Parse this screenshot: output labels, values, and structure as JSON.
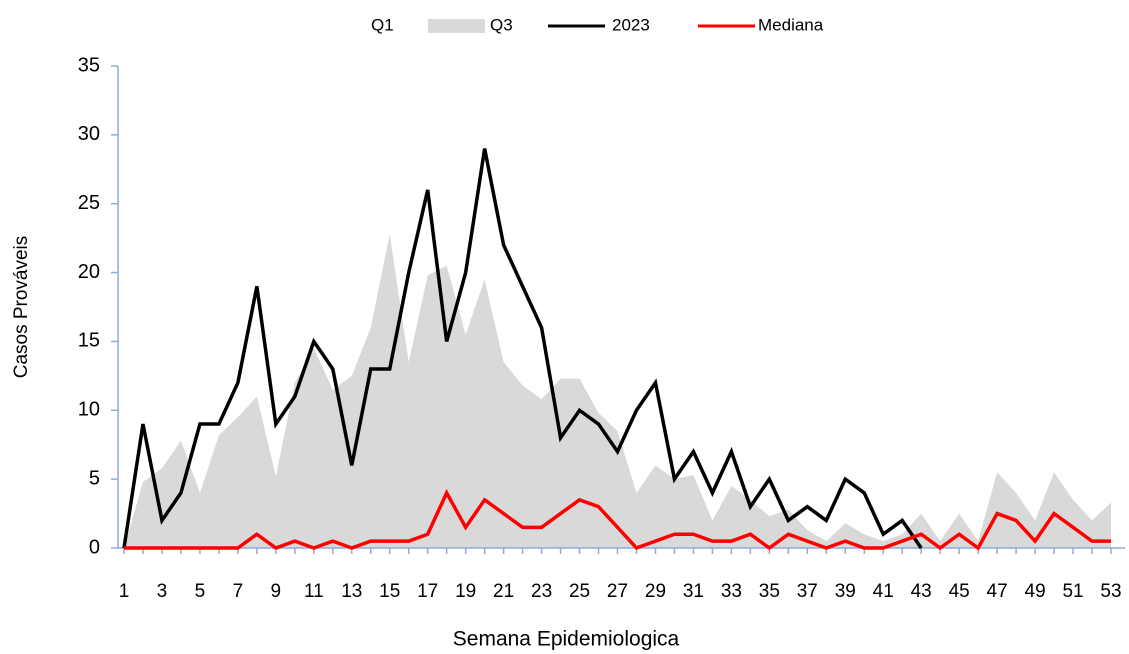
{
  "chart_data": {
    "type": "line",
    "xlabel": "Semana Epidemiologica",
    "ylabel": "Casos Prováveis",
    "categories": [
      1,
      null,
      3,
      null,
      5,
      null,
      7,
      null,
      9,
      null,
      11,
      null,
      13,
      null,
      15,
      null,
      17,
      null,
      19,
      null,
      21,
      null,
      23,
      null,
      25,
      null,
      27,
      null,
      29,
      null,
      31,
      null,
      33,
      null,
      35,
      null,
      37,
      null,
      39,
      null,
      41,
      null,
      43,
      null,
      45,
      null,
      47,
      null,
      49,
      null,
      51,
      null,
      53
    ],
    "ylim": [
      0,
      35
    ],
    "yticks": [
      0,
      5,
      10,
      15,
      20,
      25,
      30,
      35
    ],
    "legend": "top",
    "series": [
      {
        "name": "Q1",
        "color": "#ffffff",
        "kind": "area",
        "values": [
          0,
          0,
          0,
          0,
          0,
          0,
          0,
          0,
          0,
          0,
          0,
          0,
          0,
          0,
          0,
          0,
          0,
          0,
          0,
          0,
          0,
          0,
          0,
          0,
          0.2,
          0.8,
          0.3,
          0,
          0,
          0,
          0,
          0,
          0,
          0,
          0,
          0,
          0,
          0,
          0,
          0,
          0,
          0,
          0,
          0,
          0,
          0,
          0,
          0,
          0,
          0,
          0,
          0,
          0
        ]
      },
      {
        "name": "Q3",
        "color": "#d9d9d9",
        "kind": "area",
        "values": [
          0,
          4.8,
          5.8,
          7.8,
          4,
          8.2,
          9.5,
          11,
          5.2,
          12,
          14.5,
          11.5,
          12.5,
          16,
          22.8,
          13.5,
          19.8,
          20.5,
          15.5,
          19.5,
          13.5,
          11.8,
          10.8,
          12.3,
          12.3,
          9.8,
          8.5,
          4,
          6,
          5,
          5.3,
          2,
          4.5,
          3.5,
          2.3,
          2.8,
          1.3,
          0.5,
          1.8,
          1,
          0.5,
          1,
          2.5,
          0.5,
          2.5,
          0.5,
          5.5,
          4,
          2,
          5.5,
          3.5,
          2,
          3.3
        ]
      },
      {
        "name": "2023",
        "color": "#000000",
        "kind": "line",
        "values": [
          0,
          9,
          2,
          4,
          9,
          9,
          12,
          19,
          9,
          11,
          15,
          13,
          6,
          13,
          13,
          20,
          26,
          15,
          20,
          29,
          22,
          19,
          16,
          8,
          10,
          9,
          7,
          10,
          12,
          5,
          7,
          4,
          7,
          3,
          5,
          2,
          3,
          2,
          5,
          4,
          1,
          2,
          0,
          null,
          null,
          null,
          null,
          null,
          null,
          null,
          null,
          null,
          null
        ]
      },
      {
        "name": "Mediana",
        "color": "#ff0000",
        "kind": "line",
        "values": [
          0,
          0,
          0,
          0,
          0,
          0,
          0,
          1,
          0,
          0.5,
          0,
          0.5,
          0,
          0.5,
          0.5,
          0.5,
          1,
          4,
          1.5,
          3.5,
          2.5,
          1.5,
          1.5,
          2.5,
          3.5,
          3,
          1.5,
          0,
          0.5,
          1,
          1,
          0.5,
          0.5,
          1,
          0,
          1,
          0.5,
          0,
          0.5,
          0,
          0,
          0.5,
          1,
          0,
          1,
          0,
          2.5,
          2,
          0.5,
          2.5,
          1.5,
          0.5,
          0.5
        ]
      }
    ]
  }
}
